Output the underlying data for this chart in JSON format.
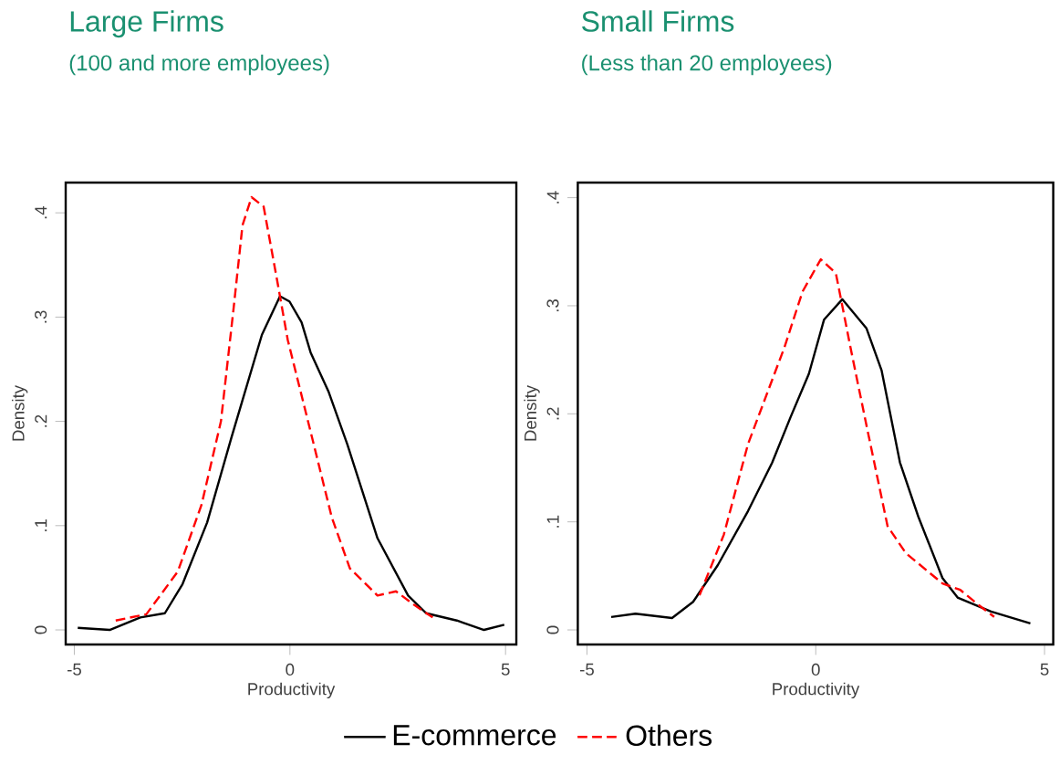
{
  "chart_data": [
    {
      "type": "line",
      "title": "Large Firms",
      "subtitle": "(100 and more employees)",
      "xlabel": "Productivity",
      "ylabel": "Density",
      "xlim": [
        -5.2,
        5.25
      ],
      "ylim": [
        -0.014,
        0.429
      ],
      "xticks": [
        -5,
        0,
        5
      ],
      "yticks": [
        0,
        {
          "value": 0.1,
          "label": ".1"
        },
        {
          "value": 0.2,
          "label": ".2"
        },
        {
          "value": 0.3,
          "label": ".3"
        },
        {
          "value": 0.4,
          "label": ".4"
        }
      ],
      "series": [
        {
          "color": "#000000",
          "line_style": "solid",
          "x": [
            -4.92,
            -4.18,
            -3.47,
            -2.9,
            -2.49,
            -1.92,
            -1.36,
            -0.65,
            -0.23,
            -0.01,
            0.27,
            0.48,
            0.9,
            1.33,
            2.03,
            2.74,
            3.16,
            3.87,
            4.5,
            4.97
          ],
          "values": [
            0.002,
            0.0,
            0.012,
            0.016,
            0.044,
            0.103,
            0.184,
            0.283,
            0.32,
            0.315,
            0.295,
            0.266,
            0.228,
            0.178,
            0.088,
            0.033,
            0.016,
            0.009,
            0.0,
            0.005
          ]
        },
        {
          "color": "#ff0000",
          "line_style": "dashed",
          "x": [
            -4.04,
            -3.33,
            -2.6,
            -2.05,
            -1.6,
            -1.31,
            -1.1,
            -0.89,
            -0.61,
            -0.3,
            -0.05,
            0.48,
            0.97,
            1.39,
            2.03,
            2.46,
            2.88,
            3.31
          ],
          "values": [
            0.009,
            0.015,
            0.056,
            0.12,
            0.2,
            0.307,
            0.388,
            0.415,
            0.406,
            0.336,
            0.278,
            0.19,
            0.108,
            0.059,
            0.033,
            0.037,
            0.024,
            0.012
          ]
        }
      ]
    },
    {
      "type": "line",
      "title": "Small Firms",
      "subtitle": "(Less than 20 employees)",
      "xlabel": "Productivity",
      "ylabel": "Density",
      "legend": "bottom",
      "xlim": [
        -5.2,
        5.19
      ],
      "ylim": [
        -0.0135,
        0.414
      ],
      "xticks": [
        -5,
        0,
        5
      ],
      "yticks": [
        0,
        {
          "value": 0.1,
          "label": ".1"
        },
        {
          "value": 0.2,
          "label": ".2"
        },
        {
          "value": 0.3,
          "label": ".3"
        },
        {
          "value": 0.4,
          "label": ".4"
        }
      ],
      "series": [
        {
          "name": "E-commerce",
          "color": "#000000",
          "line_style": "solid",
          "x": [
            -4.47,
            -3.94,
            -3.14,
            -2.68,
            -2.14,
            -1.48,
            -0.95,
            -0.55,
            -0.15,
            0.18,
            0.58,
            1.11,
            1.44,
            1.84,
            2.24,
            2.77,
            3.1,
            3.83,
            4.69
          ],
          "values": [
            0.012,
            0.015,
            0.011,
            0.026,
            0.06,
            0.11,
            0.155,
            0.197,
            0.237,
            0.287,
            0.306,
            0.279,
            0.24,
            0.155,
            0.105,
            0.048,
            0.03,
            0.017,
            0.006
          ]
        },
        {
          "name": "Others",
          "color": "#ff0000",
          "line_style": "dashed",
          "x": [
            -2.54,
            -2.01,
            -1.48,
            -1.08,
            -0.68,
            -0.29,
            0.11,
            0.44,
            0.78,
            1.11,
            1.57,
            1.97,
            2.77,
            3.16,
            3.56,
            3.9
          ],
          "values": [
            0.032,
            0.088,
            0.172,
            0.217,
            0.262,
            0.313,
            0.343,
            0.33,
            0.257,
            0.189,
            0.096,
            0.071,
            0.043,
            0.037,
            0.023,
            0.012
          ]
        }
      ]
    }
  ]
}
